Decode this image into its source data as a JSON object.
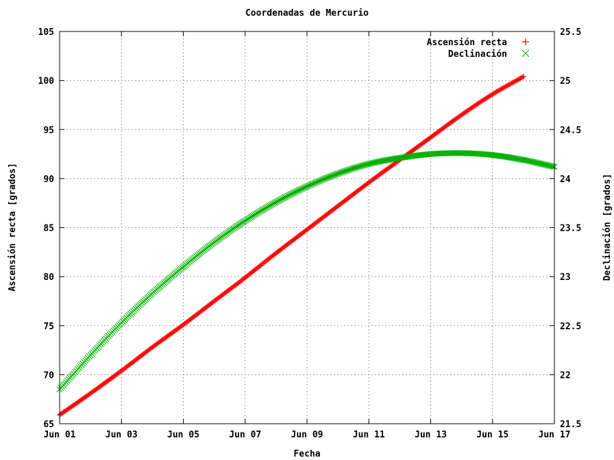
{
  "chart_data": {
    "type": "scatter",
    "title": "Coordenadas de Mercurio",
    "xlabel": "Fecha",
    "ylabel": "Ascensión recta [grados]",
    "y2label": "Declinación [grados]",
    "x_ticks": [
      "Jun 01",
      "Jun 03",
      "Jun 05",
      "Jun 07",
      "Jun 09",
      "Jun 11",
      "Jun 13",
      "Jun 15",
      "Jun 17"
    ],
    "xlim": [
      1,
      17
    ],
    "ylim": [
      65,
      105
    ],
    "y_ticks": [
      "65",
      "70",
      "75",
      "80",
      "85",
      "90",
      "95",
      "100",
      "105"
    ],
    "y2lim": [
      21.5,
      25.5
    ],
    "y2_ticks": [
      "21.5",
      "22",
      "22.5",
      "23",
      "23.5",
      "24",
      "24.5",
      "25",
      "25.5"
    ],
    "grid": true,
    "legend_position": "top-right",
    "series": [
      {
        "name": "Ascensión recta",
        "axis": "left",
        "marker": "plus",
        "color": "#ff0000",
        "x": [
          1.0,
          2.0,
          3.0,
          4.0,
          5.0,
          6.0,
          7.0,
          8.0,
          9.0,
          10.0,
          11.0,
          12.0,
          13.0,
          14.0,
          15.0,
          16.0
        ],
        "y": [
          65.9,
          68.1,
          70.4,
          72.8,
          75.1,
          77.5,
          79.9,
          82.4,
          84.8,
          87.2,
          89.6,
          91.9,
          94.2,
          96.5,
          98.6,
          100.4
        ]
      },
      {
        "name": "Declinación",
        "axis": "right",
        "marker": "cross",
        "color": "#00b000",
        "x": [
          1.0,
          2.0,
          3.0,
          4.0,
          5.0,
          6.0,
          7.0,
          8.0,
          9.0,
          10.0,
          11.0,
          12.0,
          13.0,
          14.0,
          15.0,
          16.0,
          17.0
        ],
        "y": [
          21.85,
          22.2,
          22.53,
          22.83,
          23.1,
          23.35,
          23.57,
          23.76,
          23.92,
          24.05,
          24.15,
          24.21,
          24.25,
          24.26,
          24.24,
          24.19,
          24.12
        ]
      }
    ]
  }
}
